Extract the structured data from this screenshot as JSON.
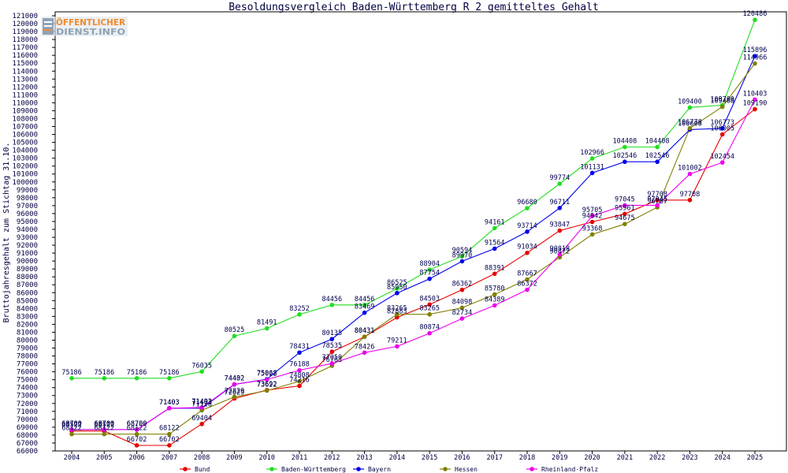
{
  "logo": {
    "line1": "ÖFFENTLICHER",
    "line2": "DIENST.INFO"
  },
  "chart_data": {
    "type": "line",
    "title": "Besoldungsvergleich Baden-Württemberg R 2 gemitteltes Gehalt",
    "ylabel": "Bruttojahresgehalt zum Stichtag 31.10.",
    "categories": [
      "2004",
      "2005",
      "2006",
      "2007",
      "2008",
      "2009",
      "2010",
      "2011",
      "2012",
      "2013",
      "2014",
      "2015",
      "2016",
      "2017",
      "2018",
      "2019",
      "2020",
      "2021",
      "2022",
      "2023",
      "2024",
      "2025"
    ],
    "ylim": [
      66000,
      121000
    ],
    "yticks": [
      66000,
      67000,
      68000,
      69000,
      70000,
      71000,
      72000,
      73000,
      74000,
      75000,
      76000,
      77000,
      78000,
      79000,
      80000,
      81000,
      82000,
      83000,
      84000,
      85000,
      86000,
      87000,
      88000,
      89000,
      90000,
      91000,
      92000,
      93000,
      94000,
      95000,
      96000,
      97000,
      98000,
      99000,
      100000,
      101000,
      102000,
      103000,
      104000,
      105000,
      106000,
      107000,
      108000,
      109000,
      110000,
      111000,
      112000,
      113000,
      114000,
      115000,
      116000,
      117000,
      118000,
      119000,
      120000,
      121000
    ],
    "grid": false,
    "legend_position": "bottom",
    "data_labels": true,
    "series": [
      {
        "name": "Bund",
        "color": "#e60000",
        "values": [
          68522,
          68522,
          66702,
          66702,
          69404,
          72629,
          73692,
          74216,
          78535,
          80431,
          82883,
          84503,
          86362,
          88391,
          91034,
          93847,
          94942,
          95961,
          97708,
          97708,
          106005,
          109190
        ]
      },
      {
        "name": "Baden-Württemberg",
        "color": "#22dd22",
        "values": [
          75186,
          75186,
          75186,
          75186,
          76035,
          80525,
          81491,
          83252,
          84456,
          84456,
          86525,
          88904,
          90594,
          94161,
          96680,
          99774,
          102966,
          104408,
          104408,
          109400,
          109700,
          120486
        ]
      },
      {
        "name": "Bayern",
        "color": "#0000ee",
        "values": [
          68700,
          68700,
          68700,
          71403,
          71403,
          74402,
          75068,
          78431,
          80135,
          83469,
          85950,
          87754,
          89970,
          91564,
          93714,
          96711,
          101131,
          102546,
          102546,
          106608,
          106773,
          115896
        ]
      },
      {
        "name": "Hessen",
        "color": "#808000",
        "values": [
          68122,
          68122,
          68122,
          68122,
          71128,
          72829,
          73622,
          74808,
          76763,
          80431,
          83265,
          83265,
          84098,
          85780,
          87667,
          90472,
          93368,
          94675,
          96787,
          106778,
          109488,
          114966
        ]
      },
      {
        "name": "Rheinland-Pfalz",
        "color": "#ee00ee",
        "values": [
          68700,
          68700,
          68700,
          71403,
          71493,
          74432,
          75022,
          76188,
          77050,
          78426,
          79211,
          80874,
          82734,
          84389,
          86372,
          90818,
          95705,
          97045,
          97045,
          101002,
          102454,
          110403
        ]
      }
    ]
  }
}
